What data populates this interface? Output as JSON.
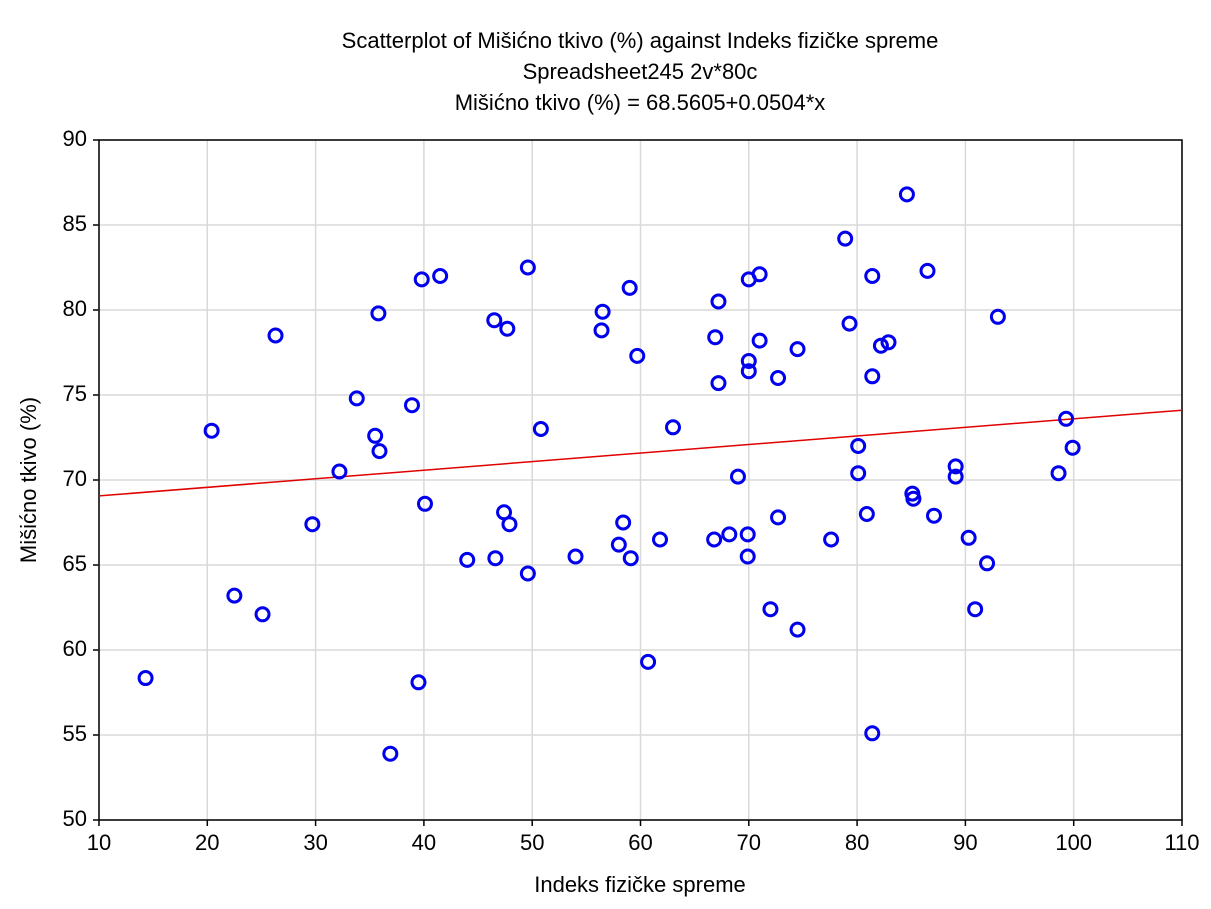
{
  "chart_data": {
    "type": "scatter",
    "title": "Scatterplot of Mišićno tkivo (%) against Indeks fizičke spreme",
    "subtitle": "Spreadsheet245 2v*80c",
    "equation": "Mišićno tkivo (%) = 68.5605+0.0504*x",
    "x_label": "Indeks fizičke spreme",
    "y_label": "Mišićno tkivo (%)",
    "xlim": [
      10,
      110
    ],
    "xticks": [
      10,
      20,
      30,
      40,
      50,
      60,
      70,
      80,
      90,
      100,
      110
    ],
    "ylim": [
      50,
      90
    ],
    "yticks": [
      50,
      55,
      60,
      65,
      70,
      75,
      80,
      85,
      90
    ],
    "grid": true,
    "color": "#0000ee",
    "fit": {
      "intercept": 68.5605,
      "slope": 0.0504,
      "color": "#e00000"
    },
    "x": [
      14.3,
      20.4,
      22.5,
      25.1,
      26.3,
      29.7,
      32.2,
      33.8,
      35.5,
      35.8,
      35.9,
      36.9,
      38.9,
      39.5,
      39.8,
      40.1,
      41.5,
      44.0,
      46.5,
      46.6,
      47.4,
      47.7,
      47.9,
      49.6,
      49.6,
      50.8,
      54.0,
      56.4,
      56.5,
      58.0,
      58.4,
      59.0,
      59.1,
      59.7,
      60.7,
      61.8,
      63.0,
      66.8,
      66.9,
      67.2,
      67.2,
      68.2,
      69.0,
      69.9,
      69.9,
      70.0,
      70.0,
      70.0,
      71.0,
      71.0,
      72.0,
      72.7,
      72.7,
      74.5,
      74.5,
      77.6,
      78.9,
      79.3,
      80.1,
      80.1,
      80.9,
      81.4,
      81.4,
      81.4,
      82.2,
      82.9,
      84.6,
      85.1,
      85.2,
      86.5,
      87.1,
      89.1,
      89.1,
      90.3,
      90.9,
      92.0,
      93.0,
      98.6,
      99.3,
      99.9
    ],
    "values": [
      58.35,
      72.9,
      63.2,
      62.1,
      78.5,
      67.4,
      70.5,
      74.8,
      72.6,
      79.8,
      71.7,
      53.9,
      74.4,
      58.1,
      81.8,
      68.6,
      82.0,
      65.3,
      79.4,
      65.4,
      68.1,
      78.9,
      67.4,
      82.5,
      64.5,
      73.0,
      65.5,
      78.8,
      79.9,
      66.2,
      67.5,
      81.3,
      65.4,
      77.3,
      59.3,
      66.5,
      73.1,
      66.5,
      78.4,
      80.5,
      75.7,
      66.8,
      70.2,
      66.8,
      65.5,
      81.8,
      77.0,
      76.4,
      82.1,
      78.2,
      62.4,
      76.0,
      67.8,
      61.2,
      77.7,
      66.5,
      84.2,
      79.2,
      72.0,
      70.4,
      68.0,
      55.1,
      76.1,
      82.0,
      77.9,
      78.1,
      86.8,
      69.2,
      68.9,
      82.3,
      67.9,
      70.8,
      70.2,
      66.6,
      62.4,
      65.1,
      79.6,
      70.4,
      73.6,
      71.9
    ]
  }
}
